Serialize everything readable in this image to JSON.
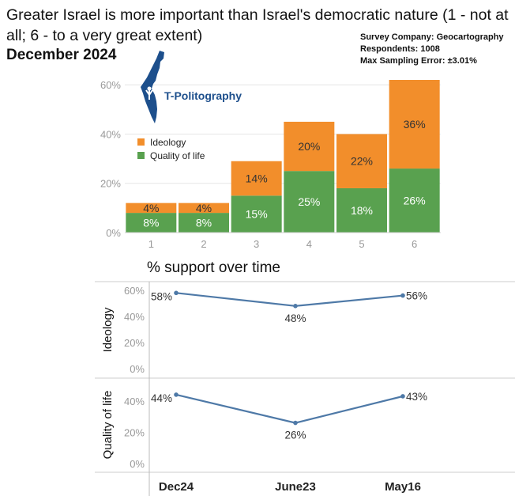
{
  "title": "Greater Israel is more important than Israel's democratic nature (1 - not at all; 6 - to a very great extent)",
  "subtitle": "December 2024",
  "survey_info": {
    "company": "Survey Company: Geocartography",
    "respondents": "Respondents: 1008",
    "error": "Max Sampling Error: ±3.01%"
  },
  "logo": {
    "text": "T-Politography",
    "icon": "israel-map-logo-icon"
  },
  "colors": {
    "ideology": "#f28e2b",
    "quality": "#59a14f",
    "line": "#4e79a7",
    "grid": "#e6e6e6",
    "axis": "#999999"
  },
  "chart_data": [
    {
      "type": "bar",
      "stacked": true,
      "categories": [
        "1",
        "2",
        "3",
        "4",
        "5",
        "6"
      ],
      "series": [
        {
          "name": "Quality of life",
          "values": [
            8,
            8,
            15,
            25,
            18,
            26
          ],
          "labels": [
            "8%",
            "8%",
            "15%",
            "25%",
            "18%",
            "26%"
          ]
        },
        {
          "name": "Ideology",
          "values": [
            4,
            4,
            14,
            20,
            22,
            36
          ],
          "labels": [
            "4%",
            "4%",
            "14%",
            "20%",
            "22%",
            "36%"
          ]
        }
      ],
      "ylim": [
        0,
        62
      ],
      "yticks": [
        0,
        20,
        40,
        60
      ],
      "ytick_labels": [
        "0%",
        "20%",
        "40%",
        "60%"
      ],
      "legend": [
        "Ideology",
        "Quality of life"
      ],
      "legend_position": "left"
    },
    {
      "type": "line",
      "title": "% support over time",
      "x": [
        "Dec24",
        "June23",
        "May16"
      ],
      "panels": [
        {
          "name": "Ideology",
          "values": [
            58,
            48,
            56
          ],
          "labels": [
            "58%",
            "48%",
            "56%"
          ],
          "ylim": [
            0,
            60
          ],
          "yticks": [
            0,
            20,
            40,
            60
          ],
          "ytick_labels": [
            "0%",
            "20%",
            "40%",
            "60%"
          ]
        },
        {
          "name": "Quality of life",
          "values": [
            44,
            26,
            43
          ],
          "labels": [
            "44%",
            "26%",
            "43%"
          ],
          "ylim": [
            0,
            46
          ],
          "yticks": [
            0,
            20,
            40
          ],
          "ytick_labels": [
            "0%",
            "20%",
            "40%"
          ]
        }
      ]
    }
  ]
}
